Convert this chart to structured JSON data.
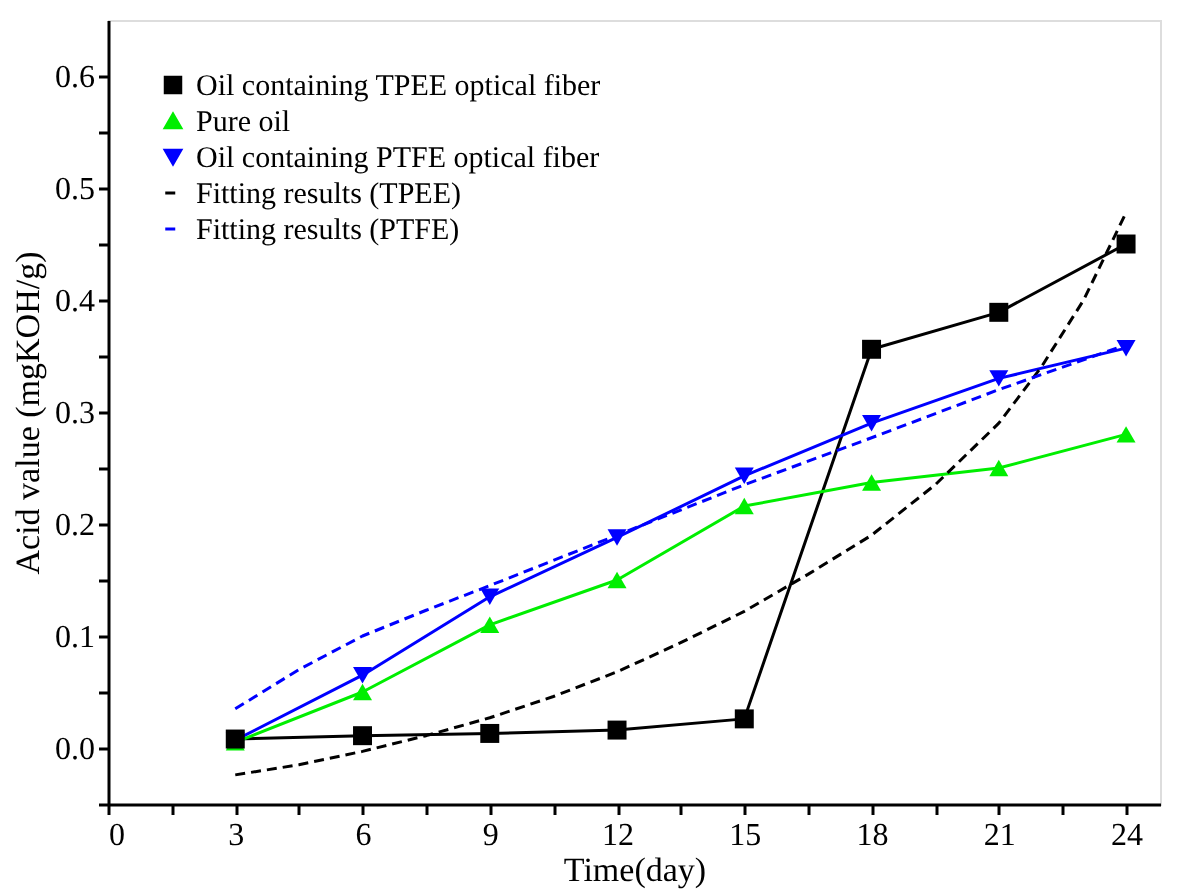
{
  "chart_data": {
    "type": "line",
    "xlabel": "Time(day)",
    "ylabel": "Acid value (mgKOH/g)",
    "x": [
      3,
      6,
      9,
      12,
      15,
      18,
      21,
      24
    ],
    "series": [
      {
        "name": "Oil containing TPEE optical fiber",
        "color": "#000000",
        "marker": "square",
        "line_style": "solid",
        "values": [
          0.008,
          0.011,
          0.013,
          0.016,
          0.026,
          0.356,
          0.389,
          0.45
        ]
      },
      {
        "name": "Pure oil",
        "color": "#00ee00",
        "marker": "triangle",
        "line_style": "solid",
        "values": [
          0.005,
          0.05,
          0.11,
          0.15,
          0.216,
          0.237,
          0.25,
          0.28
        ]
      },
      {
        "name": "Oil containing PTFE optical fiber",
        "color": "#0000ff",
        "marker": "triangle-down",
        "line_style": "solid",
        "values": [
          0.007,
          0.065,
          0.135,
          0.188,
          0.243,
          0.29,
          0.33,
          0.357
        ]
      },
      {
        "name": "Fitting results (TPEE)",
        "color": "#000000",
        "marker": "none",
        "line_style": "dashed",
        "x": [
          3,
          4.5,
          6,
          7.5,
          9,
          10.5,
          12,
          13.5,
          15,
          16.5,
          18,
          19.5,
          21,
          22,
          23,
          24
        ],
        "values": [
          -0.024,
          -0.015,
          -0.003,
          0.011,
          0.027,
          0.046,
          0.068,
          0.094,
          0.122,
          0.155,
          0.19,
          0.235,
          0.29,
          0.34,
          0.4,
          0.478
        ]
      },
      {
        "name": "Fitting results (PTFE)",
        "color": "#0000ff",
        "marker": "none",
        "line_style": "dashed",
        "x": [
          3,
          4.5,
          6,
          7.5,
          9,
          12,
          15,
          18,
          21,
          24
        ],
        "values": [
          0.035,
          0.07,
          0.1,
          0.123,
          0.145,
          0.19,
          0.235,
          0.277,
          0.32,
          0.36
        ]
      }
    ],
    "xlim": [
      0,
      24.8
    ],
    "xticks": [
      0,
      {
        "value": 1.5,
        "label": null
      },
      3,
      {
        "value": 4.5,
        "label": null
      },
      6,
      {
        "value": 7.5,
        "label": null
      },
      9,
      {
        "value": 10.5,
        "label": null
      },
      12,
      {
        "value": 13.5,
        "label": null
      },
      15,
      {
        "value": 16.5,
        "label": null
      },
      18,
      {
        "value": 19.5,
        "label": null
      },
      21,
      {
        "value": 22.5,
        "label": null
      },
      24
    ],
    "ylim": [
      -0.05,
      0.65
    ],
    "yticks": [
      {
        "value": -0.05,
        "label": null
      },
      {
        "value": 0,
        "label": "0.0"
      },
      {
        "value": 0.05,
        "label": null
      },
      0.1,
      {
        "value": 0.15,
        "label": null
      },
      0.2,
      {
        "value": 0.25,
        "label": null
      },
      0.3,
      {
        "value": 0.35,
        "label": null
      },
      0.4,
      {
        "value": 0.45,
        "label": null
      },
      0.5,
      {
        "value": 0.55,
        "label": null
      },
      0.6
    ],
    "grid": false,
    "legend": "top left"
  }
}
